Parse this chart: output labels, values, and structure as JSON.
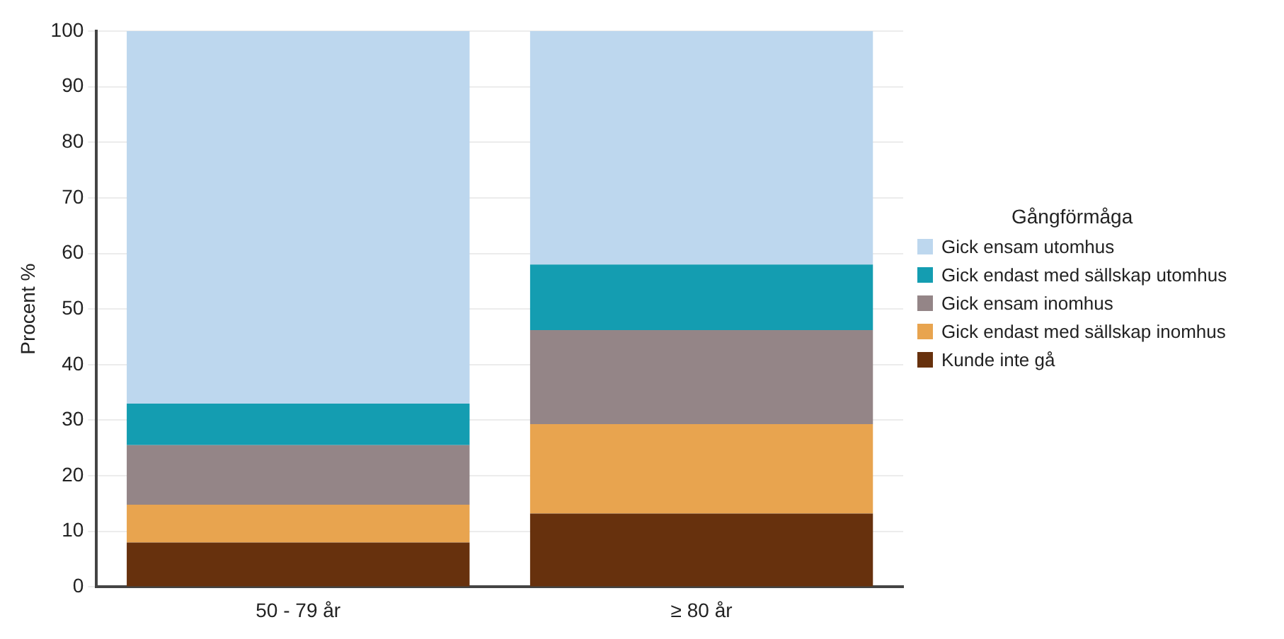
{
  "chart_data": {
    "type": "bar",
    "stacked": true,
    "ylabel": "Procent %",
    "legend_title": "Gångförmåga",
    "legend": "right",
    "grid": "y",
    "categories": [
      "50 - 79 år",
      "≥ 80 år"
    ],
    "ylim": [
      0,
      100
    ],
    "yticks": [
      0,
      10,
      20,
      30,
      40,
      50,
      60,
      70,
      80,
      90,
      100
    ],
    "series": [
      {
        "name": "Kunde inte gå",
        "color": "#67310d",
        "values": [
          8,
          13.2
        ]
      },
      {
        "name": "Gick endast med sällskap inomhus",
        "color": "#e8a44f",
        "values": [
          6.8,
          16.1
        ]
      },
      {
        "name": "Gick ensam inomhus",
        "color": "#948587",
        "values": [
          10.7,
          16.9
        ]
      },
      {
        "name": "Gick endast med sällskap utomhus",
        "color": "#149db1",
        "values": [
          7.5,
          11.8
        ]
      },
      {
        "name": "Gick ensam utomhus",
        "color": "#bdd7ee",
        "values": [
          67,
          42
        ]
      }
    ]
  }
}
